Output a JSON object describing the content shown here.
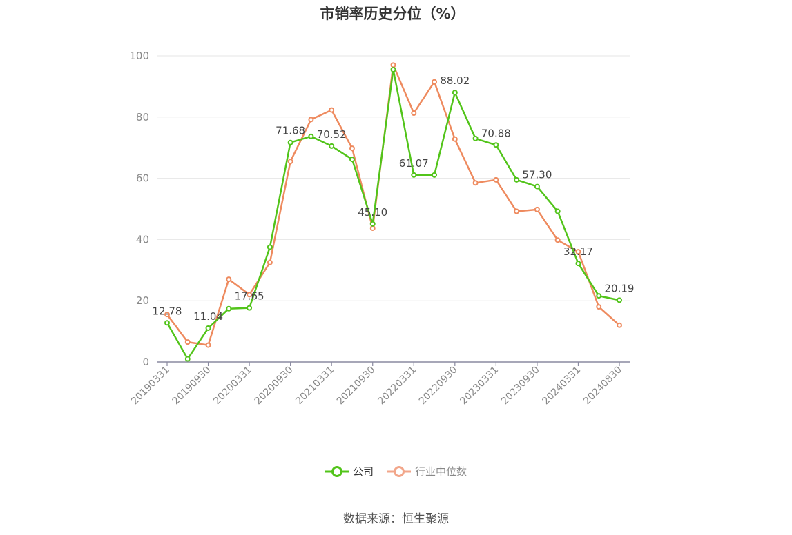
{
  "title": "市销率历史分位（%）",
  "source": "数据来源：恒生聚源",
  "legend": [
    {
      "name": "公司",
      "color": "#52c41a"
    },
    {
      "name": "行业中位数",
      "color": "#f2a68a"
    }
  ],
  "chart_data": {
    "type": "line",
    "ylim": [
      0,
      100
    ],
    "yticks": [
      0,
      20,
      40,
      60,
      80,
      100
    ],
    "grid": true,
    "legend_position": "bottom",
    "x": [
      "20190331",
      "20190630",
      "20190930",
      "20191231",
      "20200331",
      "20200630",
      "20200930",
      "20201231",
      "20210331",
      "20210630",
      "20210930",
      "20211231",
      "20220331",
      "20220630",
      "20220930",
      "20221231",
      "20230331",
      "20230630",
      "20230930",
      "20231231",
      "20240331",
      "20240630",
      "20240830"
    ],
    "xtick_labels": [
      "20190331",
      "20190930",
      "20200331",
      "20200930",
      "20210331",
      "20210930",
      "20220331",
      "20220930",
      "20230331",
      "20230930",
      "20240331",
      "20240830"
    ],
    "series": [
      {
        "name": "公司",
        "color": "#52c41a",
        "values": [
          12.78,
          1.0,
          11.04,
          17.4,
          17.65,
          37.5,
          71.68,
          73.7,
          70.52,
          66.2,
          45.1,
          95.5,
          61.07,
          61.07,
          88.02,
          73.0,
          70.88,
          59.5,
          57.3,
          49.2,
          32.17,
          21.6,
          20.19
        ],
        "labels": [
          "12.78",
          null,
          "11.04",
          null,
          "17.65",
          null,
          "71.68",
          null,
          "70.52",
          null,
          "45.10",
          null,
          "61.07",
          null,
          "88.02",
          null,
          "70.88",
          null,
          "57.30",
          null,
          "32.17",
          null,
          "20.19"
        ]
      },
      {
        "name": "行业中位数",
        "color": "#ee8a5e",
        "values": [
          15.5,
          6.5,
          5.5,
          27.0,
          22.0,
          32.5,
          65.5,
          79.2,
          82.3,
          69.8,
          43.7,
          97.0,
          81.3,
          91.5,
          72.8,
          58.5,
          59.5,
          49.2,
          49.8,
          39.8,
          36.0,
          18.0,
          12.0
        ]
      }
    ]
  }
}
